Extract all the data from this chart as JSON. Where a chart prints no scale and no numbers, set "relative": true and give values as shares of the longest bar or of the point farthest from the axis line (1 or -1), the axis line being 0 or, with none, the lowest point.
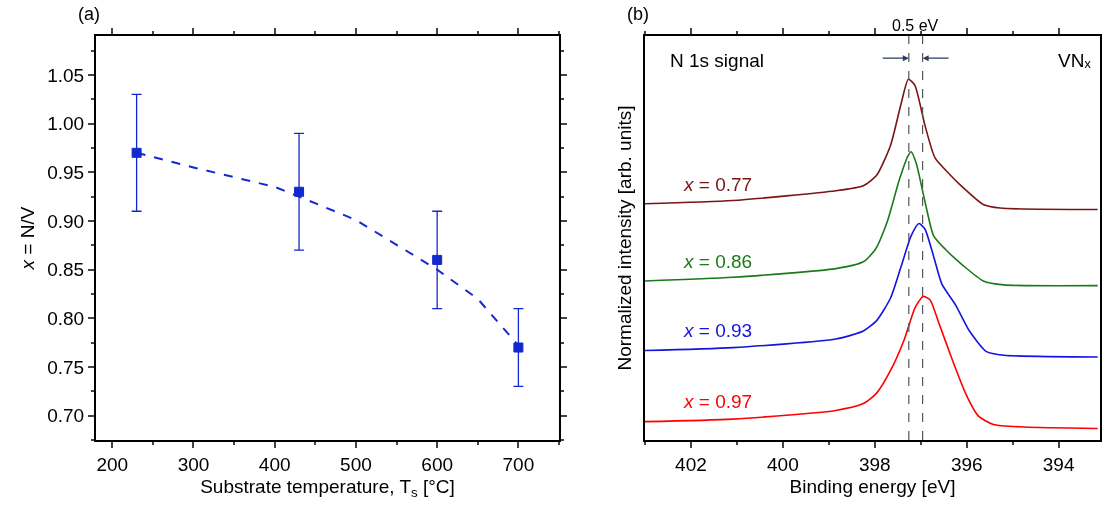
{
  "chart_data": [
    {
      "type": "scatter",
      "title": "(a)",
      "xlabel": "Substrate temperature, T$_{s}$ [°C]",
      "ylabel": "x = N/V",
      "xlim": [
        180,
        750
      ],
      "xticks": [
        200,
        300,
        400,
        500,
        600,
        700
      ],
      "ylim": [
        0.675,
        1.09
      ],
      "yticks": [
        {
          "value": 0.7,
          "label": "0.70"
        },
        0.75,
        {
          "value": 0.8,
          "label": "0.80"
        },
        0.85,
        {
          "value": 0.9,
          "label": "0.90"
        },
        0.95,
        {
          "value": 1,
          "label": "1.00"
        },
        1.05
      ],
      "series": [
        {
          "type": "scatter",
          "color": "#1428d0",
          "marker": "square",
          "x": [
            230,
            430,
            600,
            700
          ],
          "values": [
            0.97,
            0.93,
            0.86,
            0.77
          ],
          "errors": [
            0.06,
            0.06,
            0.05,
            0.04
          ]
        },
        {
          "type": "line",
          "color": "#1428d0",
          "marker": "none",
          "line_style": "dashed",
          "x": [
            230,
            300,
            400,
            430,
            500,
            600,
            650,
            700
          ],
          "values": [
            0.97,
            0.955,
            0.935,
            0.925,
            0.901,
            0.85,
            0.82,
            0.772
          ]
        }
      ]
    },
    {
      "type": "line",
      "title": "(b)",
      "xlabel": "Binding energy [eV]",
      "ylabel": "Normalized intensity [arb. units]",
      "relative": true,
      "xlim": [
        403,
        393.1
      ],
      "xticks": [
        402,
        400,
        398,
        396,
        394
      ],
      "line_style": "solid",
      "marker": "none",
      "annotations": [
        "N 1s signal",
        "VNₓ",
        "0.5 eV"
      ],
      "ref_lines": [
        {
          "axis": "x",
          "value": 397.26,
          "color": "#555555",
          "line_style": "dashed"
        },
        {
          "axis": "x",
          "value": 396.96,
          "color": "#555555",
          "line_style": "dashed"
        }
      ],
      "series": [
        {
          "name": "x = 0.77",
          "color": "#7b1414",
          "x": [
            403.0,
            401.09,
            398.85,
            398.25,
            397.96,
            397.66,
            397.43,
            397.27,
            397.13,
            396.91,
            396.69,
            396.39,
            396.09,
            395.64,
            395.27,
            393.15
          ],
          "values": [
            0.655,
            0.664,
            0.691,
            0.705,
            0.734,
            0.816,
            0.931,
            1.0,
            0.984,
            0.873,
            0.782,
            0.739,
            0.701,
            0.653,
            0.643,
            0.639
          ]
        },
        {
          "name": "x = 0.86",
          "color": "#1a7a1a",
          "x": [
            403.0,
            401.09,
            398.85,
            398.25,
            397.99,
            397.73,
            397.47,
            397.28,
            397.21,
            397.1,
            396.91,
            396.72,
            396.46,
            396.09,
            395.64,
            395.19,
            393.15
          ],
          "values": [
            0.441,
            0.451,
            0.475,
            0.494,
            0.528,
            0.605,
            0.72,
            0.787,
            0.799,
            0.768,
            0.662,
            0.566,
            0.528,
            0.485,
            0.441,
            0.43,
            0.428
          ]
        },
        {
          "name": "x = 0.93",
          "color": "#1414e0",
          "x": [
            403.0,
            401.09,
            398.85,
            398.25,
            397.96,
            397.66,
            397.43,
            397.21,
            397.04,
            396.91,
            396.72,
            396.54,
            396.24,
            395.94,
            395.57,
            395.19,
            393.15
          ],
          "values": [
            0.248,
            0.256,
            0.28,
            0.302,
            0.331,
            0.393,
            0.48,
            0.566,
            0.6,
            0.585,
            0.509,
            0.432,
            0.374,
            0.302,
            0.245,
            0.235,
            0.23
          ]
        },
        {
          "name": "x = 0.97",
          "color": "#ff0000",
          "x": [
            403.0,
            401.09,
            398.85,
            398.25,
            397.96,
            397.66,
            397.36,
            397.13,
            396.95,
            396.8,
            396.61,
            396.31,
            396.01,
            395.75,
            395.42,
            394.75,
            393.15
          ],
          "values": [
            0.051,
            0.058,
            0.082,
            0.101,
            0.13,
            0.192,
            0.278,
            0.365,
            0.398,
            0.389,
            0.326,
            0.221,
            0.125,
            0.067,
            0.043,
            0.036,
            0.032
          ]
        }
      ]
    }
  ]
}
